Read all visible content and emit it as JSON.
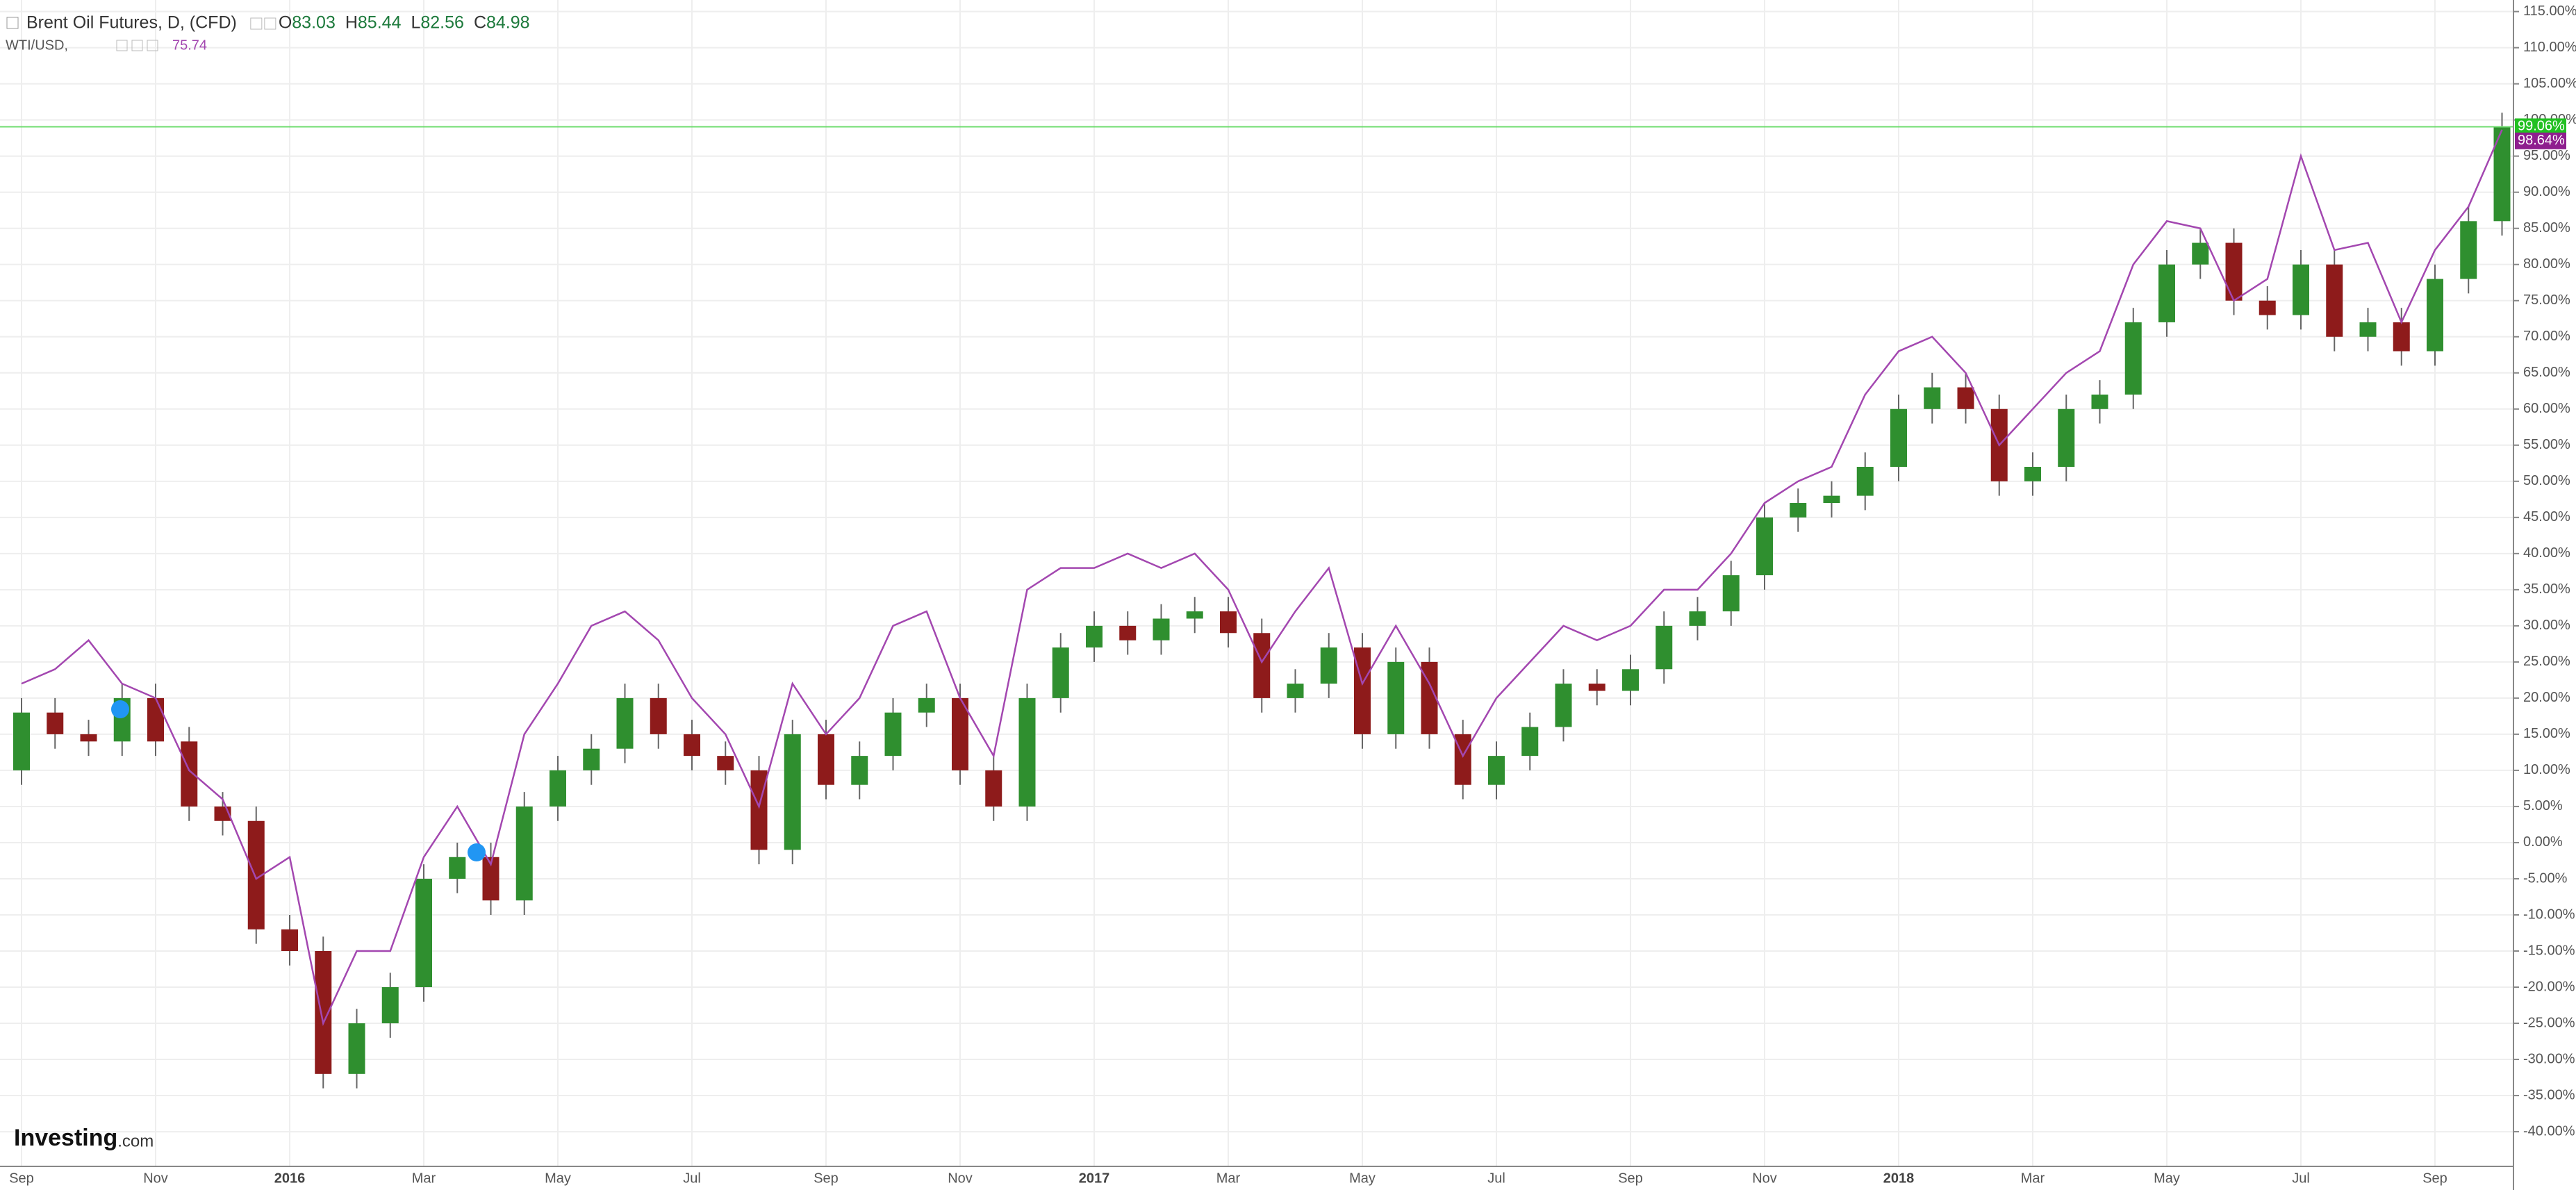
{
  "chart_data": {
    "type": "candlestick",
    "title": "Brent Oil Futures, D, (CFD)",
    "legend": [
      {
        "key": "O",
        "value": 83.03
      },
      {
        "key": "H",
        "value": 85.44
      },
      {
        "key": "L",
        "value": 82.56
      },
      {
        "key": "C",
        "value": 84.98
      }
    ],
    "categories": [
      "Sep",
      null,
      null,
      null,
      "Nov",
      null,
      null,
      null,
      "2016",
      null,
      null,
      null,
      "Mar",
      null,
      null,
      null,
      "May",
      null,
      null,
      null,
      "Jul",
      null,
      null,
      null,
      "Sep",
      null,
      null,
      null,
      "Nov",
      null,
      null,
      null,
      "2017",
      null,
      null,
      null,
      "Mar",
      null,
      null,
      null,
      "May",
      null,
      null,
      null,
      "Jul",
      null,
      null,
      null,
      "Sep",
      null,
      null,
      null,
      "Nov",
      null,
      null,
      null,
      "2018",
      null,
      null,
      null,
      "Mar",
      null,
      null,
      null,
      "May",
      null,
      null,
      null,
      "Jul",
      null,
      null,
      null,
      "Sep",
      null,
      null
    ],
    "open": [
      10,
      18,
      15,
      14,
      20,
      14,
      5,
      3,
      -12,
      -15,
      -32,
      -25,
      -20,
      -5,
      -2,
      -8,
      5,
      10,
      13,
      20,
      15,
      12,
      10,
      -1,
      15,
      8,
      12,
      18,
      20,
      10,
      5,
      20,
      27,
      30,
      28,
      31,
      32,
      29,
      20,
      22,
      27,
      15,
      25,
      15,
      8,
      12,
      16,
      22,
      21,
      24,
      30,
      32,
      37,
      45,
      47,
      48,
      52,
      60,
      63,
      60,
      50,
      52,
      60,
      62,
      72,
      80,
      83,
      75,
      73,
      80,
      70,
      72,
      68,
      78,
      86
    ],
    "high": [
      20,
      20,
      17,
      22,
      22,
      16,
      7,
      5,
      -10,
      -13,
      -23,
      -18,
      -3,
      0,
      0,
      7,
      12,
      15,
      22,
      22,
      17,
      14,
      12,
      17,
      17,
      14,
      20,
      22,
      22,
      12,
      22,
      29,
      32,
      32,
      33,
      34,
      34,
      31,
      24,
      29,
      29,
      27,
      27,
      17,
      14,
      18,
      24,
      24,
      26,
      32,
      34,
      39,
      47,
      49,
      50,
      54,
      62,
      65,
      65,
      62,
      54,
      62,
      64,
      74,
      82,
      85,
      85,
      77,
      82,
      82,
      74,
      74,
      80,
      88,
      101
    ],
    "low": [
      8,
      13,
      12,
      12,
      12,
      3,
      1,
      -14,
      -17,
      -34,
      -34,
      -27,
      -22,
      -7,
      -10,
      -10,
      3,
      8,
      11,
      13,
      10,
      8,
      -3,
      -3,
      6,
      6,
      10,
      16,
      8,
      3,
      3,
      18,
      25,
      26,
      26,
      29,
      27,
      18,
      18,
      20,
      13,
      13,
      13,
      6,
      6,
      10,
      14,
      19,
      19,
      22,
      28,
      30,
      35,
      43,
      45,
      46,
      50,
      58,
      58,
      48,
      48,
      50,
      58,
      60,
      70,
      78,
      73,
      71,
      71,
      68,
      68,
      66,
      66,
      76,
      84
    ],
    "close": [
      18,
      15,
      14,
      20,
      14,
      5,
      3,
      -12,
      -15,
      -32,
      -25,
      -20,
      -5,
      -2,
      -8,
      5,
      10,
      13,
      20,
      15,
      12,
      10,
      -1,
      15,
      8,
      12,
      18,
      20,
      10,
      5,
      20,
      27,
      30,
      28,
      31,
      32,
      29,
      20,
      22,
      27,
      15,
      25,
      15,
      8,
      12,
      16,
      22,
      21,
      24,
      30,
      32,
      37,
      45,
      47,
      48,
      52,
      60,
      63,
      60,
      50,
      52,
      60,
      62,
      72,
      80,
      83,
      75,
      73,
      80,
      70,
      72,
      68,
      78,
      86,
      99.06
    ],
    "last_value_label": "99.06%",
    "color_up": "#2f8f2f",
    "color_down": "#8e1b1b",
    "price_line_color": "#6fdc6f",
    "overlay": {
      "type": "line",
      "name": "WTI/USD,",
      "value": 75.74,
      "color": "#a347b0",
      "values": [
        22,
        24,
        28,
        22,
        20,
        10,
        6,
        -5,
        -2,
        -25,
        -15,
        -15,
        -2,
        5,
        -3,
        15,
        22,
        30,
        32,
        28,
        20,
        15,
        5,
        22,
        15,
        20,
        30,
        32,
        20,
        12,
        35,
        38,
        38,
        40,
        38,
        40,
        35,
        25,
        32,
        38,
        22,
        30,
        22,
        12,
        20,
        25,
        30,
        28,
        30,
        35,
        35,
        40,
        47,
        50,
        52,
        62,
        68,
        70,
        65,
        55,
        60,
        65,
        68,
        80,
        86,
        85,
        75,
        78,
        95,
        82,
        83,
        72,
        82,
        88,
        98.64
      ],
      "last_value_label": "98.64%"
    },
    "ylim": [
      -44.8,
      116.6
    ],
    "yticks": [
      {
        "value": 115,
        "label": "115.00%"
      },
      {
        "value": 110,
        "label": "110.00%"
      },
      {
        "value": 105,
        "label": "105.00%"
      },
      {
        "value": 100,
        "label": "100.00%"
      },
      {
        "value": 95,
        "label": "95.00%"
      },
      {
        "value": 90,
        "label": "90.00%"
      },
      {
        "value": 85,
        "label": "85.00%"
      },
      {
        "value": 80,
        "label": "80.00%"
      },
      {
        "value": 75,
        "label": "75.00%"
      },
      {
        "value": 70,
        "label": "70.00%"
      },
      {
        "value": 65,
        "label": "65.00%"
      },
      {
        "value": 60,
        "label": "60.00%"
      },
      {
        "value": 55,
        "label": "55.00%"
      },
      {
        "value": 50,
        "label": "50.00%"
      },
      {
        "value": 45,
        "label": "45.00%"
      },
      {
        "value": 40,
        "label": "40.00%"
      },
      {
        "value": 35,
        "label": "35.00%"
      },
      {
        "value": 30,
        "label": "30.00%"
      },
      {
        "value": 25,
        "label": "25.00%"
      },
      {
        "value": 20,
        "label": "20.00%"
      },
      {
        "value": 15,
        "label": "15.00%"
      },
      {
        "value": 10,
        "label": "10.00%"
      },
      {
        "value": 5,
        "label": "5.00%"
      },
      {
        "value": 0,
        "label": "0.00%"
      },
      {
        "value": -5,
        "label": "-5.00%"
      },
      {
        "value": -10,
        "label": "-10.00%"
      },
      {
        "value": -15,
        "label": "-15.00%"
      },
      {
        "value": -20,
        "label": "-20.00%"
      },
      {
        "value": -25,
        "label": "-25.00%"
      },
      {
        "value": -30,
        "label": "-30.00%"
      },
      {
        "value": -35,
        "label": "-35.00%"
      },
      {
        "value": -40,
        "label": "-40.00%"
      }
    ],
    "grid": true,
    "branding": {
      "name": "Investing",
      "suffix": ".com"
    }
  }
}
